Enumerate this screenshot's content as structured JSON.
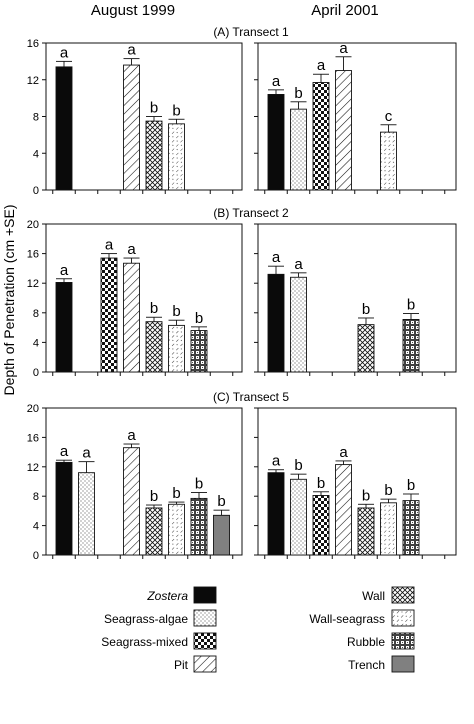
{
  "figure": {
    "column_titles": [
      "August 1999",
      "April 2001"
    ],
    "ylabel": "Depth of Penetration (cm +SE)"
  },
  "habitat_order": [
    "Zostera",
    "Seagrass-algae",
    "Seagrass-mixed",
    "Pit",
    "Wall",
    "Wall-seagrass",
    "Rubble",
    "Trench"
  ],
  "legend": {
    "left": [
      {
        "label": "Zostera",
        "pattern": "zostera",
        "italic": true
      },
      {
        "label": "Seagrass-algae",
        "pattern": "seagrass-algae"
      },
      {
        "label": "Seagrass-mixed",
        "pattern": "seagrass-mixed"
      },
      {
        "label": "Pit",
        "pattern": "pit"
      }
    ],
    "right": [
      {
        "label": "Wall",
        "pattern": "wall"
      },
      {
        "label": "Wall-seagrass",
        "pattern": "wall-seagrass"
      },
      {
        "label": "Rubble",
        "pattern": "rubble"
      },
      {
        "label": "Trench",
        "pattern": "trench"
      }
    ]
  },
  "chart_data": [
    {
      "type": "bar",
      "title": "(A) Transect 1",
      "panel": "August 1999",
      "categories": [
        "Zostera",
        "Seagrass-algae",
        "Seagrass-mixed",
        "Pit",
        "Wall",
        "Wall-seagrass",
        "Rubble",
        "Trench"
      ],
      "values": [
        13.4,
        null,
        null,
        13.6,
        7.5,
        7.2,
        null,
        null
      ],
      "se": [
        0.6,
        null,
        null,
        0.7,
        0.5,
        0.5,
        null,
        null
      ],
      "letters": [
        "a",
        null,
        null,
        "a",
        "b",
        "b",
        null,
        null
      ],
      "ylim": [
        0,
        16
      ],
      "yticks": [
        0,
        4,
        8,
        12,
        16
      ]
    },
    {
      "type": "bar",
      "title": "(A) Transect 1",
      "panel": "April 2001",
      "categories": [
        "Zostera",
        "Seagrass-algae",
        "Seagrass-mixed",
        "Pit",
        "Wall",
        "Wall-seagrass",
        "Rubble",
        "Trench"
      ],
      "values": [
        10.4,
        8.8,
        11.7,
        13.0,
        null,
        6.3,
        null,
        null
      ],
      "se": [
        0.5,
        0.8,
        0.9,
        1.5,
        null,
        0.8,
        null,
        null
      ],
      "letters": [
        "a",
        "b",
        "a",
        "a",
        null,
        "c",
        null,
        null
      ],
      "ylim": [
        0,
        16
      ],
      "yticks": [
        0,
        4,
        8,
        12,
        16
      ]
    },
    {
      "type": "bar",
      "title": "(B) Transect 2",
      "panel": "August 1999",
      "categories": [
        "Zostera",
        "Seagrass-algae",
        "Seagrass-mixed",
        "Pit",
        "Wall",
        "Wall-seagrass",
        "Rubble",
        "Trench"
      ],
      "values": [
        12.1,
        null,
        15.4,
        14.7,
        6.8,
        6.3,
        5.6,
        null
      ],
      "se": [
        0.5,
        null,
        0.6,
        0.7,
        0.6,
        0.7,
        0.5,
        null
      ],
      "letters": [
        "a",
        null,
        "a",
        "a",
        "b",
        "b",
        "b",
        null
      ],
      "ylim": [
        0,
        20
      ],
      "yticks": [
        0,
        4,
        8,
        12,
        16,
        20
      ]
    },
    {
      "type": "bar",
      "title": "(B) Transect 2",
      "panel": "April 2001",
      "categories": [
        "Zostera",
        "Seagrass-algae",
        "Seagrass-mixed",
        "Pit",
        "Wall",
        "Wall-seagrass",
        "Rubble",
        "Trench"
      ],
      "values": [
        13.2,
        12.8,
        null,
        null,
        6.4,
        null,
        7.1,
        null
      ],
      "se": [
        1.1,
        0.6,
        null,
        null,
        0.9,
        null,
        0.8,
        null
      ],
      "letters": [
        "a",
        "a",
        null,
        null,
        "b",
        null,
        "b",
        null
      ],
      "ylim": [
        0,
        20
      ],
      "yticks": [
        0,
        4,
        8,
        12,
        16,
        20
      ]
    },
    {
      "type": "bar",
      "title": "(C) Transect 5",
      "panel": "August 1999",
      "categories": [
        "Zostera",
        "Seagrass-algae",
        "Seagrass-mixed",
        "Pit",
        "Wall",
        "Wall-seagrass",
        "Rubble",
        "Trench"
      ],
      "values": [
        12.6,
        11.2,
        null,
        14.6,
        6.4,
        6.9,
        7.7,
        5.4
      ],
      "se": [
        0.3,
        1.5,
        null,
        0.5,
        0.4,
        0.3,
        0.8,
        0.7
      ],
      "letters": [
        "a",
        "a",
        null,
        "a",
        "b",
        "b",
        "b",
        "b"
      ],
      "ylim": [
        0,
        20
      ],
      "yticks": [
        0,
        4,
        8,
        12,
        16,
        20
      ]
    },
    {
      "type": "bar",
      "title": "(C) Transect 5",
      "panel": "April 2001",
      "categories": [
        "Zostera",
        "Seagrass-algae",
        "Seagrass-mixed",
        "Pit",
        "Wall",
        "Wall-seagrass",
        "Rubble",
        "Trench"
      ],
      "values": [
        11.2,
        10.3,
        8.1,
        12.3,
        6.4,
        7.1,
        7.4,
        null
      ],
      "se": [
        0.4,
        0.7,
        0.5,
        0.5,
        0.5,
        0.5,
        0.9,
        null
      ],
      "letters": [
        "a",
        "b",
        "b",
        "a",
        "b",
        "b",
        "b",
        null
      ],
      "ylim": [
        0,
        20
      ],
      "yticks": [
        0,
        4,
        8,
        12,
        16,
        20
      ]
    }
  ]
}
